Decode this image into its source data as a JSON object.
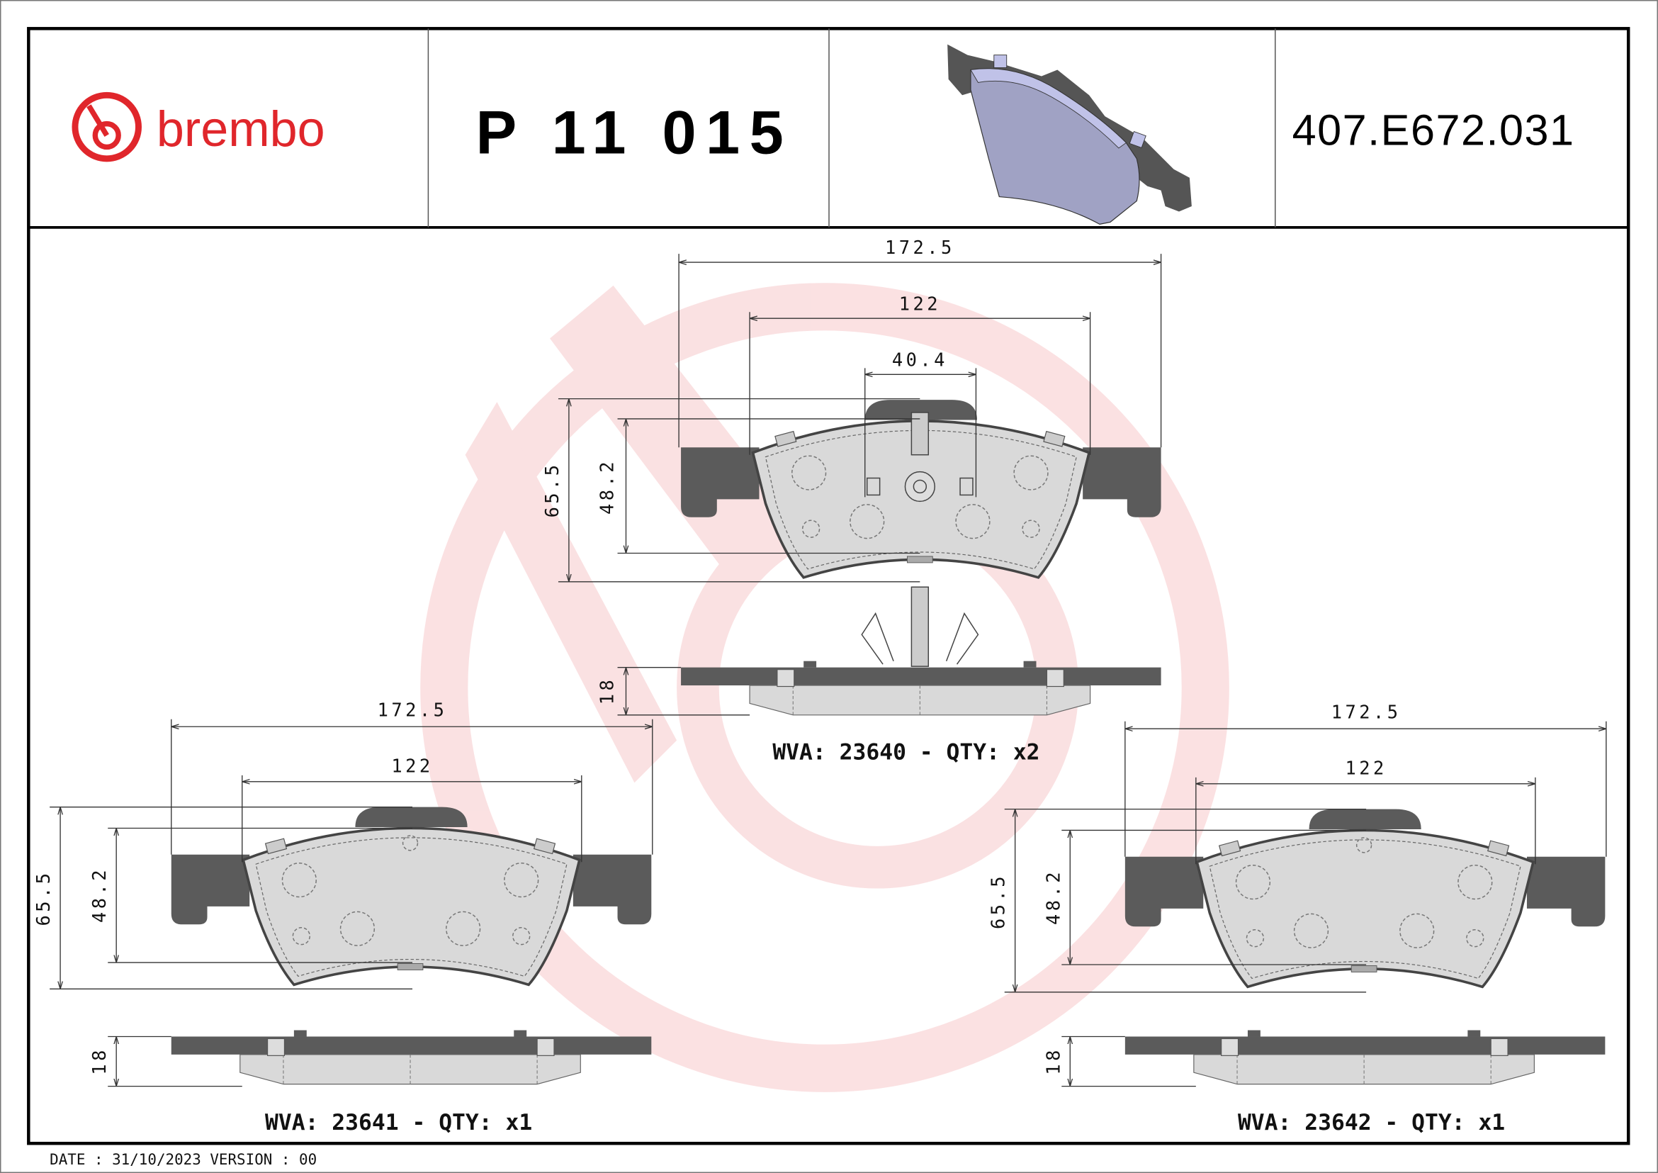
{
  "header": {
    "brand": "brembo",
    "part_number": "P 11 015",
    "reference": "407.E672.031",
    "brand_color": "#e0262b"
  },
  "views": {
    "main": {
      "width_overall": "172.5",
      "width_friction": "122",
      "tab_width": "40.4",
      "height_overall": "65.5",
      "height_friction": "48.2",
      "thickness": "18",
      "caption": "WVA: 23640 - QTY: x2"
    },
    "left": {
      "width_overall": "172.5",
      "width_friction": "122",
      "height_overall": "65.5",
      "height_friction": "48.2",
      "thickness": "18",
      "caption": "WVA: 23641 - QTY: x1"
    },
    "right": {
      "width_overall": "172.5",
      "width_friction": "122",
      "height_overall": "65.5",
      "height_friction": "48.2",
      "thickness": "18",
      "caption": "WVA: 23642 - QTY: x1"
    }
  },
  "footer": {
    "date_version": "DATE : 31/10/2023 VERSION : 00"
  }
}
